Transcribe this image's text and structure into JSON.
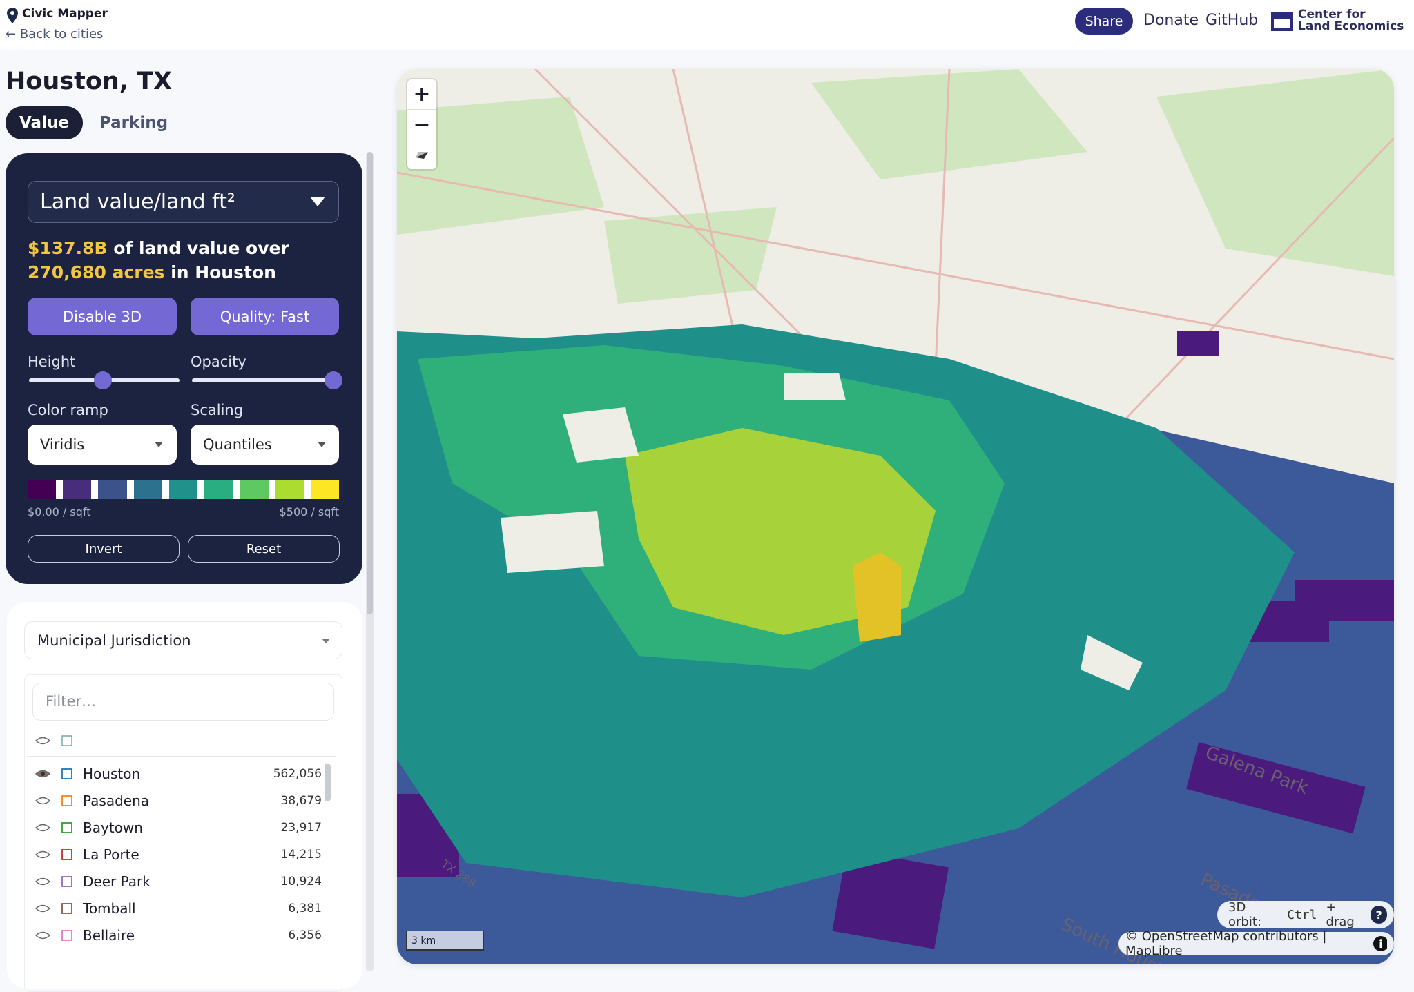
{
  "header": {
    "app_name": "Civic Mapper",
    "back_link": "Back to cities",
    "nav": [
      "Share",
      "Donate",
      "GitHub"
    ],
    "org": [
      "Center for",
      "Land Economics"
    ]
  },
  "sidebar": {
    "city": "Houston, TX",
    "tabs": [
      "Value",
      "Parking"
    ],
    "active_tab": 0,
    "panel": {
      "metric": "Land value/land ft²",
      "summary": {
        "value": "$137.8B",
        "text1": " of land value over ",
        "acres": "270,680 acres",
        "text2": " in Houston"
      },
      "buttons": [
        "Disable 3D",
        "Quality: Fast"
      ],
      "sliders": [
        {
          "label": "Height"
        },
        {
          "label": "Opacity"
        }
      ],
      "selects": [
        {
          "label": "Color ramp",
          "value": "Viridis"
        },
        {
          "label": "Scaling",
          "value": "Quantiles"
        }
      ],
      "ramp_colors": [
        "#440154",
        "#472d7b",
        "#3b528b",
        "#2c728e",
        "#21918c",
        "#28ae80",
        "#5ec962",
        "#addc30",
        "#fde725"
      ],
      "ramp_min": "$0.00 / sqft",
      "ramp_max": "$500 / sqft",
      "actions": [
        "Invert",
        "Reset"
      ]
    },
    "filter": {
      "dropdown": "Municipal Jurisdiction",
      "placeholder": "Filter…",
      "rows": [
        {
          "name": "Houston",
          "count": "562,056",
          "color": "#1f77b4",
          "visible": true
        },
        {
          "name": "Pasadena",
          "count": "38,679",
          "color": "#ff7f0e",
          "visible": false
        },
        {
          "name": "Baytown",
          "count": "23,917",
          "color": "#2ca02c",
          "visible": false
        },
        {
          "name": "La Porte",
          "count": "14,215",
          "color": "#d62728",
          "visible": false
        },
        {
          "name": "Deer Park",
          "count": "10,924",
          "color": "#9467bd",
          "visible": false
        },
        {
          "name": "Tomball",
          "count": "6,381",
          "color": "#8c564b",
          "visible": false
        },
        {
          "name": "Bellaire",
          "count": "6,356",
          "color": "#e377c2",
          "visible": false
        }
      ]
    }
  },
  "map": {
    "zoom_in": "+",
    "zoom_out": "−",
    "scale": "3 km",
    "orbit_label": "3D orbit:",
    "orbit_key": "Ctrl",
    "orbit_action": "+ drag",
    "help": "?",
    "attribution": "© OpenStreetMap contributors | MapLibre",
    "labels": [
      "TX 288",
      "Galena Park",
      "Pasadena",
      "South Houston"
    ]
  }
}
